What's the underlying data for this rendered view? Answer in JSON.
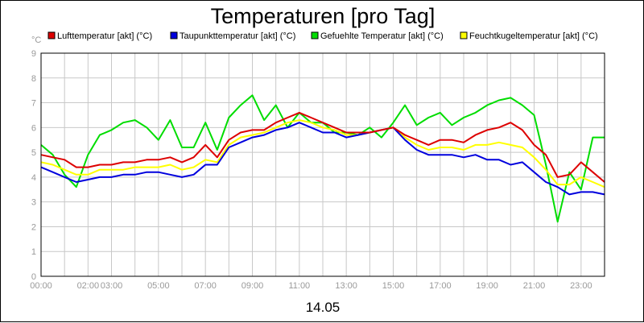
{
  "chart_data": {
    "type": "line",
    "title": "Temperaturen [pro Tag]",
    "xlabel": "14.05",
    "ylabel": "°C",
    "xlim": [
      0,
      24
    ],
    "ylim": [
      0,
      9
    ],
    "y_ticks": [
      "0",
      "1",
      "2",
      "3",
      "4",
      "5",
      "6",
      "7",
      "8",
      "9"
    ],
    "x_ticks": [
      {
        "label": "00:00",
        "h": 0
      },
      {
        "label": "02:00",
        "h": 2
      },
      {
        "label": "03:00",
        "h": 3
      },
      {
        "label": "05:00",
        "h": 5
      },
      {
        "label": "07:00",
        "h": 7
      },
      {
        "label": "09:00",
        "h": 9
      },
      {
        "label": "11:00",
        "h": 11
      },
      {
        "label": "13:00",
        "h": 13
      },
      {
        "label": "15:00",
        "h": 15
      },
      {
        "label": "17:00",
        "h": 17
      },
      {
        "label": "19:00",
        "h": 19
      },
      {
        "label": "21:00",
        "h": 21
      },
      {
        "label": "23:00",
        "h": 23
      }
    ],
    "grid": true,
    "legend_position": "top",
    "x": [
      0,
      0.5,
      1,
      1.5,
      2,
      2.5,
      3,
      3.5,
      4,
      4.5,
      5,
      5.5,
      6,
      6.5,
      7,
      7.5,
      8,
      8.5,
      9,
      9.5,
      10,
      10.5,
      11,
      11.5,
      12,
      12.5,
      13,
      13.5,
      14,
      14.5,
      15,
      15.5,
      16,
      16.5,
      17,
      17.5,
      18,
      18.5,
      19,
      19.5,
      20,
      20.5,
      21,
      21.5,
      22,
      22.5,
      23,
      23.5,
      24
    ],
    "series": [
      {
        "name": "Lufttemperatur [akt] (°C)",
        "color": "#dd0000",
        "values": [
          4.9,
          4.8,
          4.7,
          4.4,
          4.4,
          4.5,
          4.5,
          4.6,
          4.6,
          4.7,
          4.7,
          4.8,
          4.6,
          4.8,
          5.3,
          4.8,
          5.5,
          5.8,
          5.9,
          5.9,
          6.2,
          6.4,
          6.6,
          6.4,
          6.2,
          6.0,
          5.8,
          5.8,
          5.8,
          5.9,
          6.0,
          5.7,
          5.5,
          5.3,
          5.5,
          5.5,
          5.4,
          5.7,
          5.9,
          6.0,
          6.2,
          5.9,
          5.3,
          4.9,
          4.0,
          4.1,
          4.6,
          4.2,
          3.8
        ]
      },
      {
        "name": "Taupunkttemperatur [akt] (°C)",
        "color": "#0000dd",
        "values": [
          4.4,
          4.2,
          4.0,
          3.8,
          3.9,
          4.0,
          4.0,
          4.1,
          4.1,
          4.2,
          4.2,
          4.1,
          4.0,
          4.1,
          4.5,
          4.5,
          5.2,
          5.4,
          5.6,
          5.7,
          5.9,
          6.0,
          6.2,
          6.0,
          5.8,
          5.8,
          5.6,
          5.7,
          5.8,
          5.9,
          6.0,
          5.5,
          5.1,
          4.9,
          4.9,
          4.9,
          4.8,
          4.9,
          4.7,
          4.7,
          4.5,
          4.6,
          4.2,
          3.8,
          3.6,
          3.3,
          3.4,
          3.4,
          3.3
        ]
      },
      {
        "name": "Gefuehlte Temperatur [akt] (°C)",
        "color": "#00dd00",
        "values": [
          5.3,
          4.9,
          4.1,
          3.6,
          4.9,
          5.7,
          5.9,
          6.2,
          6.3,
          6.0,
          5.5,
          6.3,
          5.2,
          5.2,
          6.2,
          5.1,
          6.4,
          6.9,
          7.3,
          6.3,
          6.9,
          6.0,
          6.6,
          6.2,
          6.2,
          5.8,
          5.8,
          5.7,
          6.0,
          5.6,
          6.2,
          6.9,
          6.1,
          6.4,
          6.6,
          6.1,
          6.4,
          6.6,
          6.9,
          7.1,
          7.2,
          6.9,
          6.5,
          4.5,
          2.2,
          4.2,
          3.5,
          5.6,
          5.6
        ]
      },
      {
        "name": "Feuchtkugeltemperatur [akt] (°C)",
        "color": "#ffff00",
        "values": [
          4.6,
          4.5,
          4.3,
          4.1,
          4.1,
          4.3,
          4.3,
          4.3,
          4.4,
          4.4,
          4.4,
          4.5,
          4.3,
          4.4,
          4.7,
          4.6,
          5.3,
          5.6,
          5.7,
          5.8,
          6.0,
          6.2,
          6.3,
          6.2,
          6.0,
          5.9,
          5.7,
          5.7,
          5.8,
          5.9,
          6.0,
          5.6,
          5.3,
          5.1,
          5.2,
          5.2,
          5.1,
          5.3,
          5.3,
          5.4,
          5.3,
          5.2,
          4.8,
          4.3,
          3.7,
          3.7,
          4.0,
          3.8,
          3.6
        ]
      }
    ]
  }
}
